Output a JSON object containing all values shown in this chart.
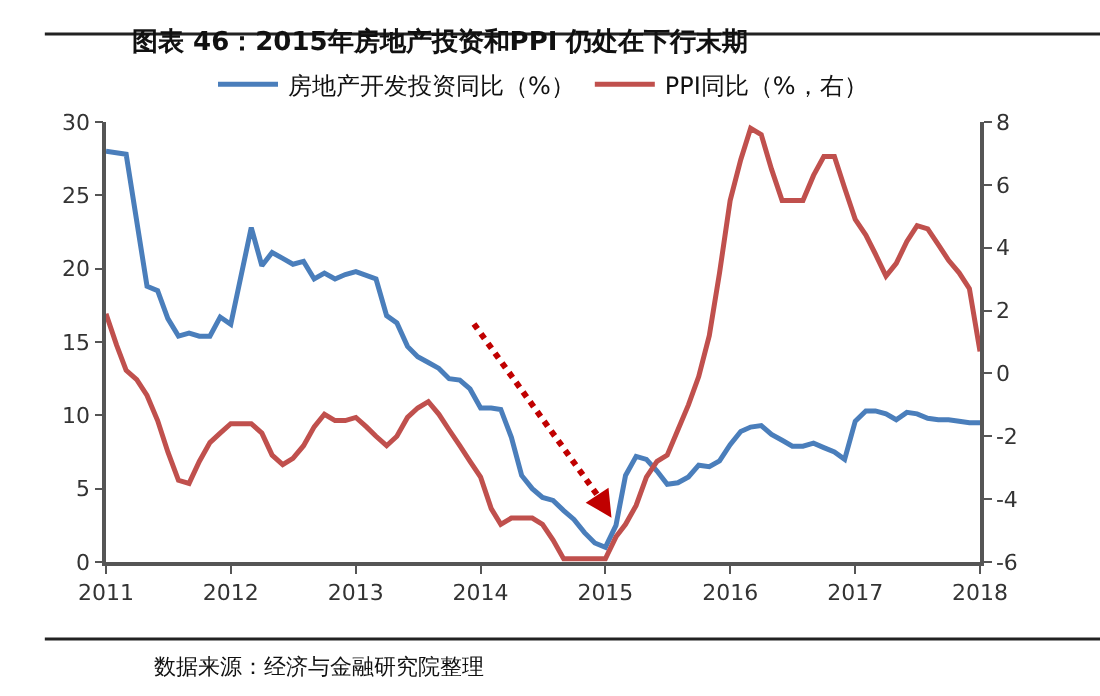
{
  "chart_data": {
    "type": "line",
    "title": "图表 46：2015年房地产投资和PPI 仍处在下行末期",
    "annotations": [
      "数据来源：经济与金融研究院整理"
    ],
    "xlim": [
      "2011-01",
      "2018-01"
    ],
    "xticks": [
      {
        "value": "2011-01",
        "label": "2011"
      },
      {
        "value": "2012-01",
        "label": "2012"
      },
      {
        "value": "2013-01",
        "label": "2013"
      },
      {
        "value": "2014-01",
        "label": "2014"
      },
      {
        "value": "2015-01",
        "label": "2015"
      },
      {
        "value": "2016-01",
        "label": "2016"
      },
      {
        "value": "2017-01",
        "label": "2017"
      },
      {
        "value": "2018-01",
        "label": "2018"
      }
    ],
    "ylim": [
      0,
      30
    ],
    "yticks": [
      0,
      5,
      10,
      15,
      20,
      25,
      30
    ],
    "y2lim": [
      -6,
      8
    ],
    "y2ticks": [
      -6,
      -4,
      -2,
      0,
      2,
      4,
      6,
      8
    ],
    "grid": false,
    "legend": "top",
    "marker": "none",
    "line_style": "solid",
    "series": [
      {
        "name": "房地产开发投资同比（%）",
        "color": "#4a7ebb",
        "x": [
          "2011-01",
          "2011-03",
          "2011-05",
          "2011-06",
          "2011-07",
          "2011-08",
          "2011-09",
          "2011-10",
          "2011-11",
          "2011-12",
          "2012-01",
          "2012-03",
          "2012-04",
          "2012-05",
          "2012-06",
          "2012-07",
          "2012-08",
          "2012-09",
          "2012-10",
          "2012-11",
          "2012-12",
          "2013-01",
          "2013-03",
          "2013-04",
          "2013-05",
          "2013-06",
          "2013-07",
          "2013-08",
          "2013-09",
          "2013-10",
          "2013-11",
          "2013-12",
          "2014-01",
          "2014-02",
          "2014-03",
          "2014-04",
          "2014-05",
          "2014-06",
          "2014-07",
          "2014-08",
          "2014-09",
          "2014-10",
          "2014-11",
          "2014-12",
          "2015-01",
          "2015-02",
          "2015-03",
          "2015-04",
          "2015-05",
          "2015-06",
          "2015-07",
          "2015-08",
          "2015-09",
          "2015-10",
          "2015-11",
          "2015-12",
          "2016-01",
          "2016-02",
          "2016-03",
          "2016-04",
          "2016-05",
          "2016-06",
          "2016-07",
          "2016-08",
          "2016-09",
          "2016-10",
          "2016-11",
          "2016-12",
          "2017-01",
          "2017-02",
          "2017-03",
          "2017-04",
          "2017-05",
          "2017-06",
          "2017-07",
          "2017-08",
          "2017-09",
          "2017-10",
          "2017-11",
          "2017-12",
          "2018-01"
        ],
        "values": [
          28.0,
          27.8,
          18.8,
          18.5,
          16.6,
          15.4,
          15.6,
          15.4,
          15.4,
          16.7,
          16.2,
          22.8,
          20.2,
          21.1,
          20.7,
          20.3,
          20.5,
          19.3,
          19.7,
          19.3,
          19.6,
          19.8,
          19.3,
          16.8,
          16.3,
          14.7,
          14.0,
          13.6,
          13.2,
          12.5,
          12.4,
          11.8,
          10.5,
          10.5,
          10.4,
          8.5,
          5.9,
          5.0,
          4.4,
          4.2,
          3.5,
          2.9,
          2.0,
          1.3,
          1.0,
          2.5,
          5.9,
          7.2,
          7.0,
          6.2,
          5.3,
          5.4,
          5.8,
          6.6,
          6.5,
          6.9,
          8.0,
          8.9,
          9.2,
          9.3,
          8.7,
          8.3,
          7.9,
          7.9,
          8.1,
          7.8,
          7.5,
          7.0,
          9.6,
          10.3,
          10.3,
          10.1,
          9.7,
          10.2,
          10.1,
          9.8,
          9.7,
          9.7,
          9.6,
          9.5,
          9.5
        ]
      },
      {
        "name": "PPI同比（%，右）",
        "color": "#c0504d",
        "axis": "y2",
        "x": [
          "2011-01",
          "2011-02",
          "2011-03",
          "2011-04",
          "2011-05",
          "2011-06",
          "2011-07",
          "2011-08",
          "2011-09",
          "2011-10",
          "2011-11",
          "2011-12",
          "2012-01",
          "2012-02",
          "2012-03",
          "2012-04",
          "2012-05",
          "2012-06",
          "2012-07",
          "2012-08",
          "2012-09",
          "2012-10",
          "2012-11",
          "2012-12",
          "2013-01",
          "2013-02",
          "2013-03",
          "2013-04",
          "2013-05",
          "2013-06",
          "2013-07",
          "2013-08",
          "2013-09",
          "2013-10",
          "2013-11",
          "2013-12",
          "2014-01",
          "2014-02",
          "2014-03",
          "2014-04",
          "2014-05",
          "2014-06",
          "2014-07",
          "2014-08",
          "2014-09",
          "2014-10",
          "2014-11",
          "2014-12",
          "2015-01",
          "2015-02",
          "2015-03",
          "2015-04",
          "2015-05",
          "2015-06",
          "2015-07",
          "2015-08",
          "2015-09",
          "2015-10",
          "2015-11",
          "2015-12",
          "2016-01",
          "2016-02",
          "2016-03",
          "2016-04",
          "2016-05",
          "2016-06",
          "2016-07",
          "2016-08",
          "2016-09",
          "2016-10",
          "2016-11",
          "2016-12",
          "2017-01",
          "2017-02",
          "2017-03",
          "2017-04",
          "2017-05",
          "2017-06",
          "2017-07",
          "2017-08",
          "2017-09",
          "2017-10",
          "2017-11",
          "2017-12",
          "2018-01"
        ],
        "values": [
          1.9,
          0.9,
          0.1,
          -0.2,
          -0.7,
          -1.5,
          -2.5,
          -3.4,
          -3.5,
          -2.8,
          -2.2,
          -1.9,
          -1.6,
          -1.6,
          -1.6,
          -1.9,
          -2.6,
          -2.9,
          -2.7,
          -2.3,
          -1.7,
          -1.3,
          -1.5,
          -1.5,
          -1.4,
          -1.7,
          -2.0,
          -2.3,
          -2.0,
          -1.4,
          -1.1,
          -0.9,
          -1.3,
          -1.8,
          -2.3,
          -2.8,
          -3.3,
          -4.3,
          -4.8,
          -4.6,
          -4.6,
          -4.6,
          -4.8,
          -5.3,
          -5.9,
          -5.9,
          -5.9,
          -5.9,
          -5.9,
          -5.2,
          -4.8,
          -4.2,
          -3.3,
          -2.8,
          -2.6,
          -1.8,
          -1.0,
          -0.1,
          1.2,
          3.2,
          5.5,
          6.8,
          7.8,
          7.6,
          6.5,
          5.5,
          5.5,
          5.5,
          6.3,
          6.9,
          6.9,
          5.9,
          4.9,
          4.4,
          3.8,
          3.1,
          3.5,
          4.2,
          4.7,
          4.6,
          4.1,
          3.6,
          3.2,
          2.7,
          0.7
        ]
      }
    ]
  }
}
